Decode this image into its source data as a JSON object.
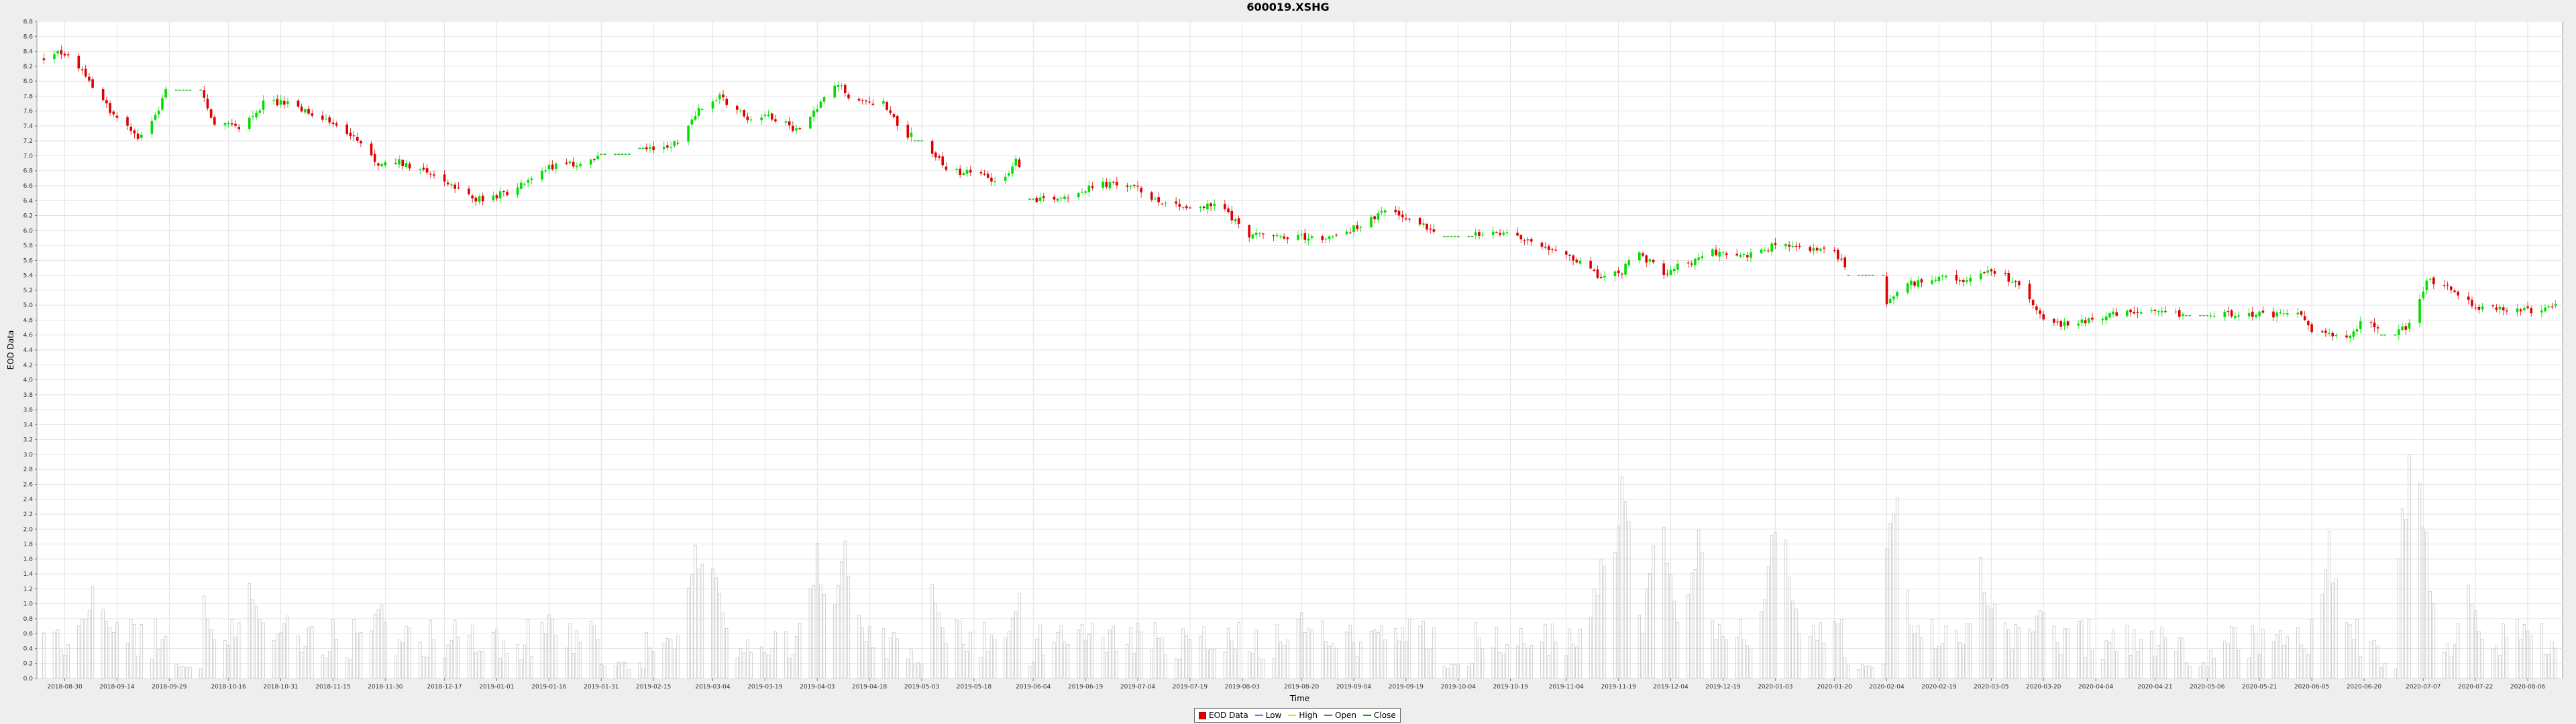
{
  "window": {
    "background": "#eeeeee",
    "plot_background": "#ffffff"
  },
  "chart_data": {
    "type": "candlestick",
    "title": "600019.XSHG",
    "xlabel": "Time",
    "ylabel": "EOD Data",
    "ylim": [
      0.0,
      8.8
    ],
    "y_ticks": [
      "0.0",
      "0.2",
      "0.4",
      "0.6",
      "0.8",
      "1.0",
      "1.2",
      "1.4",
      "1.6",
      "1.8",
      "2.0",
      "2.2",
      "2.4",
      "2.6",
      "2.8",
      "3.0",
      "3.2",
      "3.4",
      "3.6",
      "3.8",
      "4.0",
      "4.2",
      "4.4",
      "4.6",
      "4.8",
      "5.0",
      "5.2",
      "5.4",
      "5.6",
      "5.8",
      "6.0",
      "6.2",
      "6.4",
      "6.6",
      "6.8",
      "7.0",
      "7.2",
      "7.4",
      "7.6",
      "7.8",
      "8.0",
      "8.2",
      "8.4",
      "8.6",
      "8.8"
    ],
    "x_ticks": [
      "2018-08-30",
      "2018-09-14",
      "2018-09-29",
      "2018-10-16",
      "2018-10-31",
      "2018-11-15",
      "2018-11-30",
      "2018-12-17",
      "2019-01-01",
      "2019-01-16",
      "2019-01-31",
      "2019-02-15",
      "2019-03-04",
      "2019-03-19",
      "2019-04-03",
      "2019-04-18",
      "2019-05-03",
      "2019-05-18",
      "2019-06-04",
      "2019-06-19",
      "2019-07-04",
      "2019-07-19",
      "2019-08-03",
      "2019-08-20",
      "2019-09-04",
      "2019-09-19",
      "2019-10-04",
      "2019-10-19",
      "2019-11-04",
      "2019-11-19",
      "2019-12-04",
      "2019-12-19",
      "2020-01-03",
      "2020-01-20",
      "2020-02-04",
      "2020-02-19",
      "2020-03-05",
      "2020-03-20",
      "2020-04-04",
      "2020-04-21",
      "2020-05-06",
      "2020-05-21",
      "2020-06-05",
      "2020-06-20",
      "2020-07-07",
      "2020-07-22",
      "2020-08-06"
    ],
    "legend": {
      "placement": "bottom-center",
      "entries": [
        {
          "label": "EOD Data",
          "color": "#e00000"
        },
        {
          "label": "Low",
          "color": "#7070ff"
        },
        {
          "label": "High",
          "color": "#e0e000"
        },
        {
          "label": "Open",
          "color": "#707070"
        },
        {
          "label": "Close",
          "color": "#00b000"
        }
      ]
    },
    "grid": true,
    "colors": {
      "up": "#00e000",
      "down": "#e00000",
      "flat": "#22bb22",
      "volume": "#c8c8c8"
    },
    "close_anchors": [
      [
        "2018-08-24",
        8.3
      ],
      [
        "2018-08-28",
        8.42
      ],
      [
        "2018-09-03",
        8.2
      ],
      [
        "2018-09-08",
        7.85
      ],
      [
        "2018-09-14",
        7.5
      ],
      [
        "2018-09-20",
        7.25
      ],
      [
        "2018-09-26",
        7.6
      ],
      [
        "2018-09-28",
        7.92
      ],
      [
        "2018-10-08",
        7.88
      ],
      [
        "2018-10-12",
        7.4
      ],
      [
        "2018-10-20",
        7.4
      ],
      [
        "2018-10-26",
        7.7
      ],
      [
        "2018-11-01",
        7.72
      ],
      [
        "2018-11-10",
        7.52
      ],
      [
        "2018-11-20",
        7.3
      ],
      [
        "2018-11-28",
        6.85
      ],
      [
        "2018-12-02",
        6.95
      ],
      [
        "2018-12-12",
        6.8
      ],
      [
        "2018-12-22",
        6.5
      ],
      [
        "2018-12-28",
        6.4
      ],
      [
        "2019-01-06",
        6.55
      ],
      [
        "2019-01-16",
        6.85
      ],
      [
        "2019-01-26",
        6.9
      ],
      [
        "2019-02-02",
        7.0
      ],
      [
        "2019-02-12",
        7.05
      ],
      [
        "2019-02-22",
        7.18
      ],
      [
        "2019-02-28",
        7.62
      ],
      [
        "2019-03-06",
        7.8
      ],
      [
        "2019-03-14",
        7.5
      ],
      [
        "2019-03-20",
        7.55
      ],
      [
        "2019-03-28",
        7.35
      ],
      [
        "2019-04-04",
        7.7
      ],
      [
        "2019-04-09",
        7.95
      ],
      [
        "2019-04-14",
        7.7
      ],
      [
        "2019-04-22",
        7.72
      ],
      [
        "2019-04-28",
        7.3
      ],
      [
        "2019-05-04",
        7.2
      ],
      [
        "2019-05-10",
        6.8
      ],
      [
        "2019-05-20",
        6.75
      ],
      [
        "2019-05-26",
        6.65
      ],
      [
        "2019-05-30",
        6.96
      ],
      [
        "2019-06-03",
        6.42
      ],
      [
        "2019-06-12",
        6.45
      ],
      [
        "2019-06-24",
        6.62
      ],
      [
        "2019-07-02",
        6.6
      ],
      [
        "2019-07-10",
        6.4
      ],
      [
        "2019-07-20",
        6.3
      ],
      [
        "2019-07-28",
        6.35
      ],
      [
        "2019-08-04",
        5.95
      ],
      [
        "2019-08-14",
        5.92
      ],
      [
        "2019-08-24",
        5.9
      ],
      [
        "2019-08-30",
        5.92
      ],
      [
        "2019-09-08",
        6.12
      ],
      [
        "2019-09-14",
        6.28
      ],
      [
        "2019-09-20",
        6.15
      ],
      [
        "2019-09-28",
        6.0
      ],
      [
        "2019-10-06",
        5.92
      ],
      [
        "2019-10-16",
        5.96
      ],
      [
        "2019-10-26",
        5.85
      ],
      [
        "2019-11-04",
        5.7
      ],
      [
        "2019-11-14",
        5.35
      ],
      [
        "2019-11-20",
        5.45
      ],
      [
        "2019-11-24",
        5.7
      ],
      [
        "2019-12-02",
        5.45
      ],
      [
        "2019-12-10",
        5.58
      ],
      [
        "2019-12-16",
        5.72
      ],
      [
        "2019-12-24",
        5.65
      ],
      [
        "2020-01-03",
        5.8
      ],
      [
        "2020-01-12",
        5.76
      ],
      [
        "2020-01-20",
        5.7
      ],
      [
        "2020-01-24",
        5.5
      ],
      [
        "2020-02-03",
        5.0
      ],
      [
        "2020-02-08",
        5.25
      ],
      [
        "2020-02-18",
        5.38
      ],
      [
        "2020-02-26",
        5.3
      ],
      [
        "2020-03-04",
        5.5
      ],
      [
        "2020-03-12",
        5.3
      ],
      [
        "2020-03-20",
        4.85
      ],
      [
        "2020-03-25",
        4.72
      ],
      [
        "2020-04-05",
        4.85
      ],
      [
        "2020-04-15",
        4.9
      ],
      [
        "2020-04-25",
        4.88
      ],
      [
        "2020-05-05",
        4.85
      ],
      [
        "2020-05-15",
        4.9
      ],
      [
        "2020-05-25",
        4.85
      ],
      [
        "2020-06-01",
        4.92
      ],
      [
        "2020-06-05",
        4.62
      ],
      [
        "2020-06-15",
        4.55
      ],
      [
        "2020-06-20",
        4.82
      ],
      [
        "2020-06-28",
        4.6
      ],
      [
        "2020-07-03",
        4.72
      ],
      [
        "2020-07-08",
        5.35
      ],
      [
        "2020-07-16",
        5.2
      ],
      [
        "2020-07-22",
        4.95
      ],
      [
        "2020-07-30",
        4.95
      ],
      [
        "2020-08-06",
        4.92
      ],
      [
        "2020-08-14",
        4.98
      ]
    ],
    "flat_segments": [
      [
        "2018-10-01",
        "2018-10-08",
        7.88
      ],
      [
        "2019-01-31",
        "2019-02-10",
        7.02
      ],
      [
        "2019-02-04",
        "2019-02-12",
        7.1
      ],
      [
        "2019-05-01",
        "2019-05-05",
        7.2
      ],
      [
        "2019-06-01",
        "2019-06-04",
        6.42
      ],
      [
        "2019-09-30",
        "2019-10-08",
        5.92
      ],
      [
        "2020-01-24",
        "2020-02-03",
        5.4
      ],
      [
        "2020-04-30",
        "2020-05-06",
        4.86
      ],
      [
        "2020-06-25",
        "2020-06-29",
        4.6
      ]
    ],
    "volume_peaks": [
      [
        "2018-09-08",
        1.75
      ],
      [
        "2018-10-08",
        1.3
      ],
      [
        "2018-10-22",
        1.4
      ],
      [
        "2018-11-02",
        1.05
      ],
      [
        "2018-11-28",
        1.2
      ],
      [
        "2019-01-16",
        0.98
      ],
      [
        "2019-02-27",
        2.22
      ],
      [
        "2019-03-04",
        1.6
      ],
      [
        "2019-04-03",
        2.0
      ],
      [
        "2019-04-11",
        2.1
      ],
      [
        "2019-05-06",
        1.35
      ],
      [
        "2019-05-31",
        1.3
      ],
      [
        "2019-08-20",
        0.95
      ],
      [
        "2019-11-14",
        1.75
      ],
      [
        "2019-11-20",
        3.0
      ],
      [
        "2019-12-01",
        2.95
      ],
      [
        "2019-12-12",
        2.0
      ],
      [
        "2020-01-03",
        2.4
      ],
      [
        "2020-01-06",
        1.9
      ],
      [
        "2020-02-03",
        2.25
      ],
      [
        "2020-02-06",
        2.85
      ],
      [
        "2020-03-02",
        1.75
      ],
      [
        "2020-03-06",
        1.4
      ],
      [
        "2020-03-20",
        1.25
      ],
      [
        "2020-06-10",
        2.05
      ],
      [
        "2020-07-03",
        3.2
      ],
      [
        "2020-07-06",
        2.8
      ],
      [
        "2020-07-20",
        1.3
      ]
    ]
  }
}
